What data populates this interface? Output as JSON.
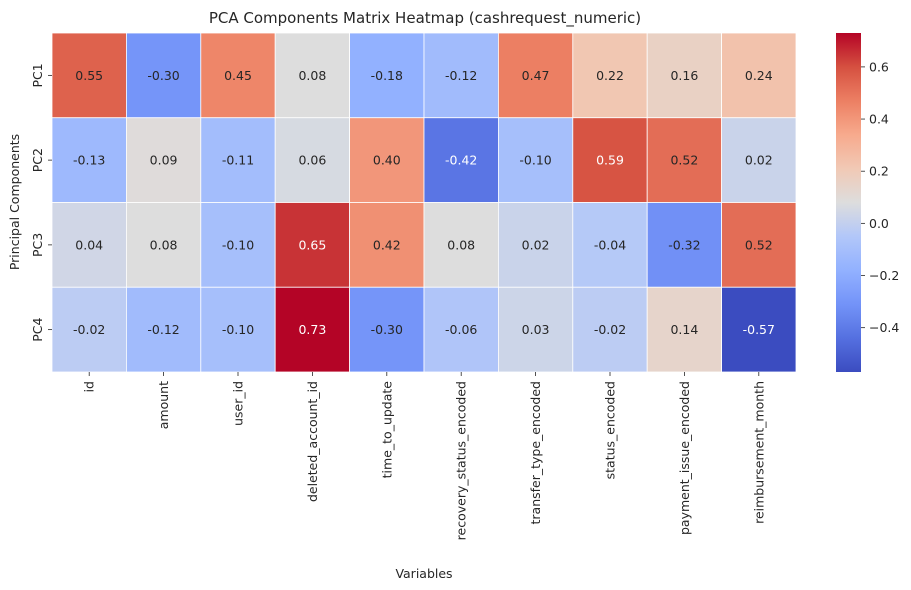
{
  "chart_data": {
    "type": "heatmap",
    "title": "PCA Components Matrix Heatmap (cashrequest_numeric)",
    "xlabel": "Variables",
    "ylabel": "Principal Components",
    "rows": [
      "PC1",
      "PC2",
      "PC3",
      "PC4"
    ],
    "columns": [
      "id",
      "amount",
      "user_id",
      "deleted_account_id",
      "time_to_update",
      "recovery_status_encoded",
      "transfer_type_encoded",
      "status_encoded",
      "payment_issue_encoded",
      "reimbursement_month"
    ],
    "values": [
      [
        0.55,
        -0.3,
        0.45,
        0.08,
        -0.18,
        -0.12,
        0.47,
        0.22,
        0.16,
        0.24
      ],
      [
        -0.13,
        0.09,
        -0.11,
        0.06,
        0.4,
        -0.42,
        -0.1,
        0.59,
        0.52,
        0.02
      ],
      [
        0.04,
        0.08,
        -0.1,
        0.65,
        0.42,
        0.08,
        0.02,
        -0.04,
        -0.32,
        0.52
      ],
      [
        -0.02,
        -0.12,
        -0.1,
        0.73,
        -0.3,
        -0.06,
        0.03,
        -0.02,
        0.14,
        -0.57
      ]
    ],
    "colormap": "coolwarm",
    "vmin": -0.57,
    "vmax": 0.73,
    "colorbar_ticks": [
      0.6,
      0.4,
      0.2,
      0.0,
      -0.2,
      -0.4
    ],
    "colorbar_tick_labels": [
      "0.6",
      "0.4",
      "0.2",
      "0.0",
      "−0.2",
      "−0.4"
    ],
    "annotation_format": "0.00"
  }
}
